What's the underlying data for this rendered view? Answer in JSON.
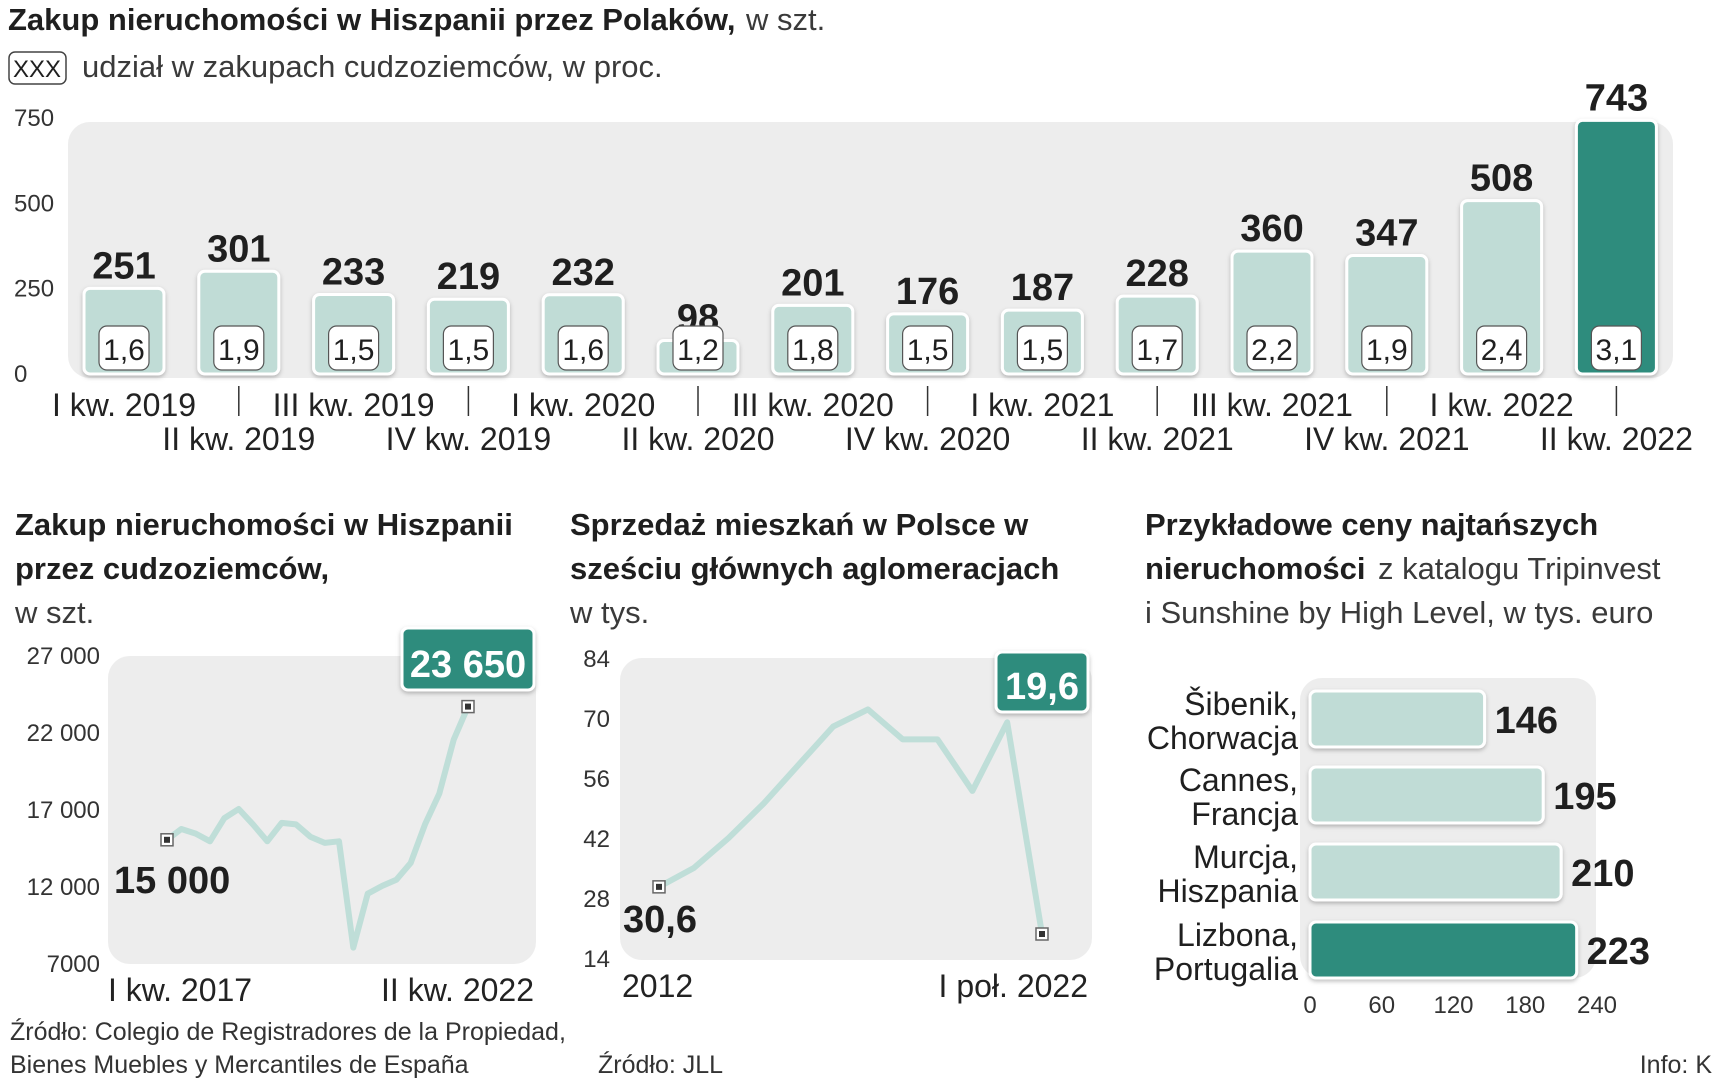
{
  "colors": {
    "light": "#c0dcd6",
    "dark": "#2f8c7d",
    "panel": "#ededed",
    "line": "#bfded8"
  },
  "chart_data": [
    {
      "type": "bar",
      "title": "Zakup nieruchomości w Hiszpanii przez Polaków,",
      "subtitle": "w szt.",
      "legend_box": "XXX",
      "legend_label": "udział w zakupach cudzoziemców, w proc.",
      "categories": [
        "I kw. 2019",
        "II kw. 2019",
        "III kw. 2019",
        "IV kw. 2019",
        "I kw. 2020",
        "II kw. 2020",
        "III kw. 2020",
        "IV kw. 2020",
        "I kw. 2021",
        "II kw. 2021",
        "III kw. 2021",
        "IV kw. 2021",
        "I kw. 2022",
        "II kw. 2022"
      ],
      "values": [
        251,
        301,
        233,
        219,
        232,
        98,
        201,
        176,
        187,
        228,
        360,
        347,
        508,
        743
      ],
      "value_labels": [
        "251",
        "301",
        "233",
        "219",
        "232",
        "98",
        "201",
        "176",
        "187",
        "228",
        "360",
        "347",
        "508",
        "743"
      ],
      "shares": [
        "1,6",
        "1,9",
        "1,5",
        "1,5",
        "1,6",
        "1,2",
        "1,8",
        "1,5",
        "1,5",
        "1,7",
        "2,2",
        "1,9",
        "2,4",
        "3,1"
      ],
      "ylim": [
        0,
        750
      ],
      "yticks": [
        0,
        250,
        500,
        750
      ],
      "ytick_labels": [
        "0",
        "250",
        "500",
        "750"
      ],
      "highlight_index": 13
    },
    {
      "type": "line",
      "title_lines": [
        "Zakup nieruchomości w Hiszpanii",
        "przez cudzoziemców,"
      ],
      "subtitle": "w szt.",
      "y": [
        15000,
        15700,
        15400,
        14900,
        16400,
        17000,
        16000,
        14900,
        16100,
        16000,
        15200,
        14800,
        14900,
        8000,
        11500,
        12000,
        12400,
        13500,
        16000,
        18000,
        21500,
        23650
      ],
      "ylim": [
        7000,
        27000
      ],
      "yticks": [
        7000,
        12000,
        17000,
        22000,
        27000
      ],
      "ytick_labels": [
        "7000",
        "12 000",
        "17 000",
        "22 000",
        "27 000"
      ],
      "x_start_label": "I kw. 2017",
      "x_end_label": "II kw. 2022",
      "start_value_label": "15 000",
      "end_value_label": "23 650",
      "source_lines": [
        "Źródło: Colegio de Registradores de la Propiedad,",
        "Bienes Muebles y Mercantiles de España"
      ]
    },
    {
      "type": "line",
      "title_lines": [
        "Sprzedaż mieszkań w Polsce w",
        "sześciu głównych aglomeracjach"
      ],
      "subtitle": "w tys.",
      "y": [
        30.6,
        35,
        42,
        50,
        59,
        68,
        72,
        65,
        65,
        53,
        69,
        19.6
      ],
      "ylim": [
        14,
        84
      ],
      "yticks": [
        14,
        28,
        42,
        56,
        70,
        84
      ],
      "ytick_labels": [
        "14",
        "28",
        "42",
        "56",
        "70",
        "84"
      ],
      "x_start_label": "2012",
      "x_end_label": "I poł. 2022",
      "start_value_label": "30,6",
      "end_value_label": "19,6",
      "source": "Źródło: JLL"
    },
    {
      "type": "bar",
      "orientation": "horizontal",
      "title_bold_lines": [
        "Przykładowe ceny najtańszych",
        "nieruchomości"
      ],
      "title_rest": "z katalogu Tripinvest",
      "title_line3": "i Sunshine by High Level, w tys. euro",
      "categories": [
        [
          "Šibenik,",
          "Chorwacja"
        ],
        [
          "Cannes,",
          "Francja"
        ],
        [
          "Murcja,",
          "Hiszpania"
        ],
        [
          "Lizbona,",
          "Portugalia"
        ]
      ],
      "values": [
        146,
        195,
        210,
        223
      ],
      "value_labels": [
        "146",
        "195",
        "210",
        "223"
      ],
      "xlim": [
        0,
        240
      ],
      "xticks": [
        0,
        60,
        120,
        180,
        240
      ],
      "xtick_labels": [
        "0",
        "60",
        "120",
        "180",
        "240"
      ],
      "highlight_index": 3
    }
  ],
  "credit": "Info: K"
}
